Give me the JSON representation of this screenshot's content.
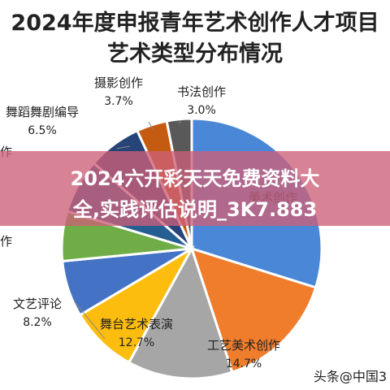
{
  "chart_data": {
    "type": "pie",
    "title": [
      "2024年度申报青年艺术创作人才项目",
      "艺术类型分布情况"
    ],
    "slices": [
      {
        "label": "美术创作",
        "value": 29.0,
        "pct_label": "",
        "color": "#4a87d6"
      },
      {
        "label": "工艺美术创作",
        "value": 14.7,
        "pct_label": "14.7%",
        "color": "#ef7d2c"
      },
      {
        "label": "舞台艺术表演",
        "value": 12.7,
        "pct_label": "12.7%",
        "color": "#a6a6a6"
      },
      {
        "label": "文艺评论",
        "value": 8.2,
        "pct_label": "8.2%",
        "color": "#fcbd0f"
      },
      {
        "label": "",
        "value": 6.8,
        "pct_label": "",
        "color": "#4472c4"
      },
      {
        "label": "",
        "value": 6.0,
        "pct_label": "",
        "color": "#70ad47"
      },
      {
        "label": "",
        "value": 6.6,
        "pct_label": "",
        "color": "#255e91"
      },
      {
        "label": "舞蹈舞剧编导",
        "value": 6.5,
        "pct_label": "6.5%",
        "color": "#264478"
      },
      {
        "label": "摄影创作",
        "value": 3.7,
        "pct_label": "3.7%",
        "color": "#c55a11"
      },
      {
        "label": "书法创作",
        "value": 3.0,
        "pct_label": "3.0%",
        "color": "#595959"
      }
    ]
  },
  "overlay": {
    "line1": "2024六开彩天天免费资料大",
    "line2": "全,实践评估说明_3K7.883"
  },
  "edge_fragments": [
    "作",
    "作"
  ],
  "watermark": "头条@中国3"
}
